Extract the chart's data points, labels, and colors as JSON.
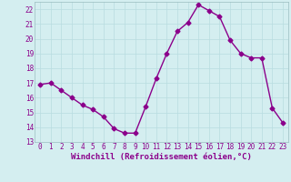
{
  "x": [
    0,
    1,
    2,
    3,
    4,
    5,
    6,
    7,
    8,
    9,
    10,
    11,
    12,
    13,
    14,
    15,
    16,
    17,
    18,
    19,
    20,
    21,
    22,
    23
  ],
  "y": [
    16.9,
    17.0,
    16.5,
    16.0,
    15.5,
    15.2,
    14.7,
    13.9,
    13.6,
    13.6,
    15.4,
    17.3,
    19.0,
    20.5,
    21.1,
    22.3,
    21.9,
    21.5,
    19.9,
    19.0,
    18.7,
    18.7,
    15.3,
    14.3
  ],
  "line_color": "#8B008B",
  "marker": "D",
  "markersize": 2.5,
  "background_color": "#d4eef0",
  "grid_color": "#b8dce0",
  "xlabel": "Windchill (Refroidissement éolien,°C)",
  "xlabel_fontsize": 6.5,
  "ylim": [
    13,
    22.5
  ],
  "xlim": [
    -0.5,
    23.5
  ],
  "yticks": [
    13,
    14,
    15,
    16,
    17,
    18,
    19,
    20,
    21,
    22
  ],
  "xtick_labels": [
    "0",
    "1",
    "2",
    "3",
    "4",
    "5",
    "6",
    "7",
    "8",
    "9",
    "10",
    "11",
    "12",
    "13",
    "14",
    "15",
    "16",
    "17",
    "18",
    "19",
    "20",
    "21",
    "22",
    "23"
  ],
  "tick_fontsize": 5.5,
  "linewidth": 1.0
}
